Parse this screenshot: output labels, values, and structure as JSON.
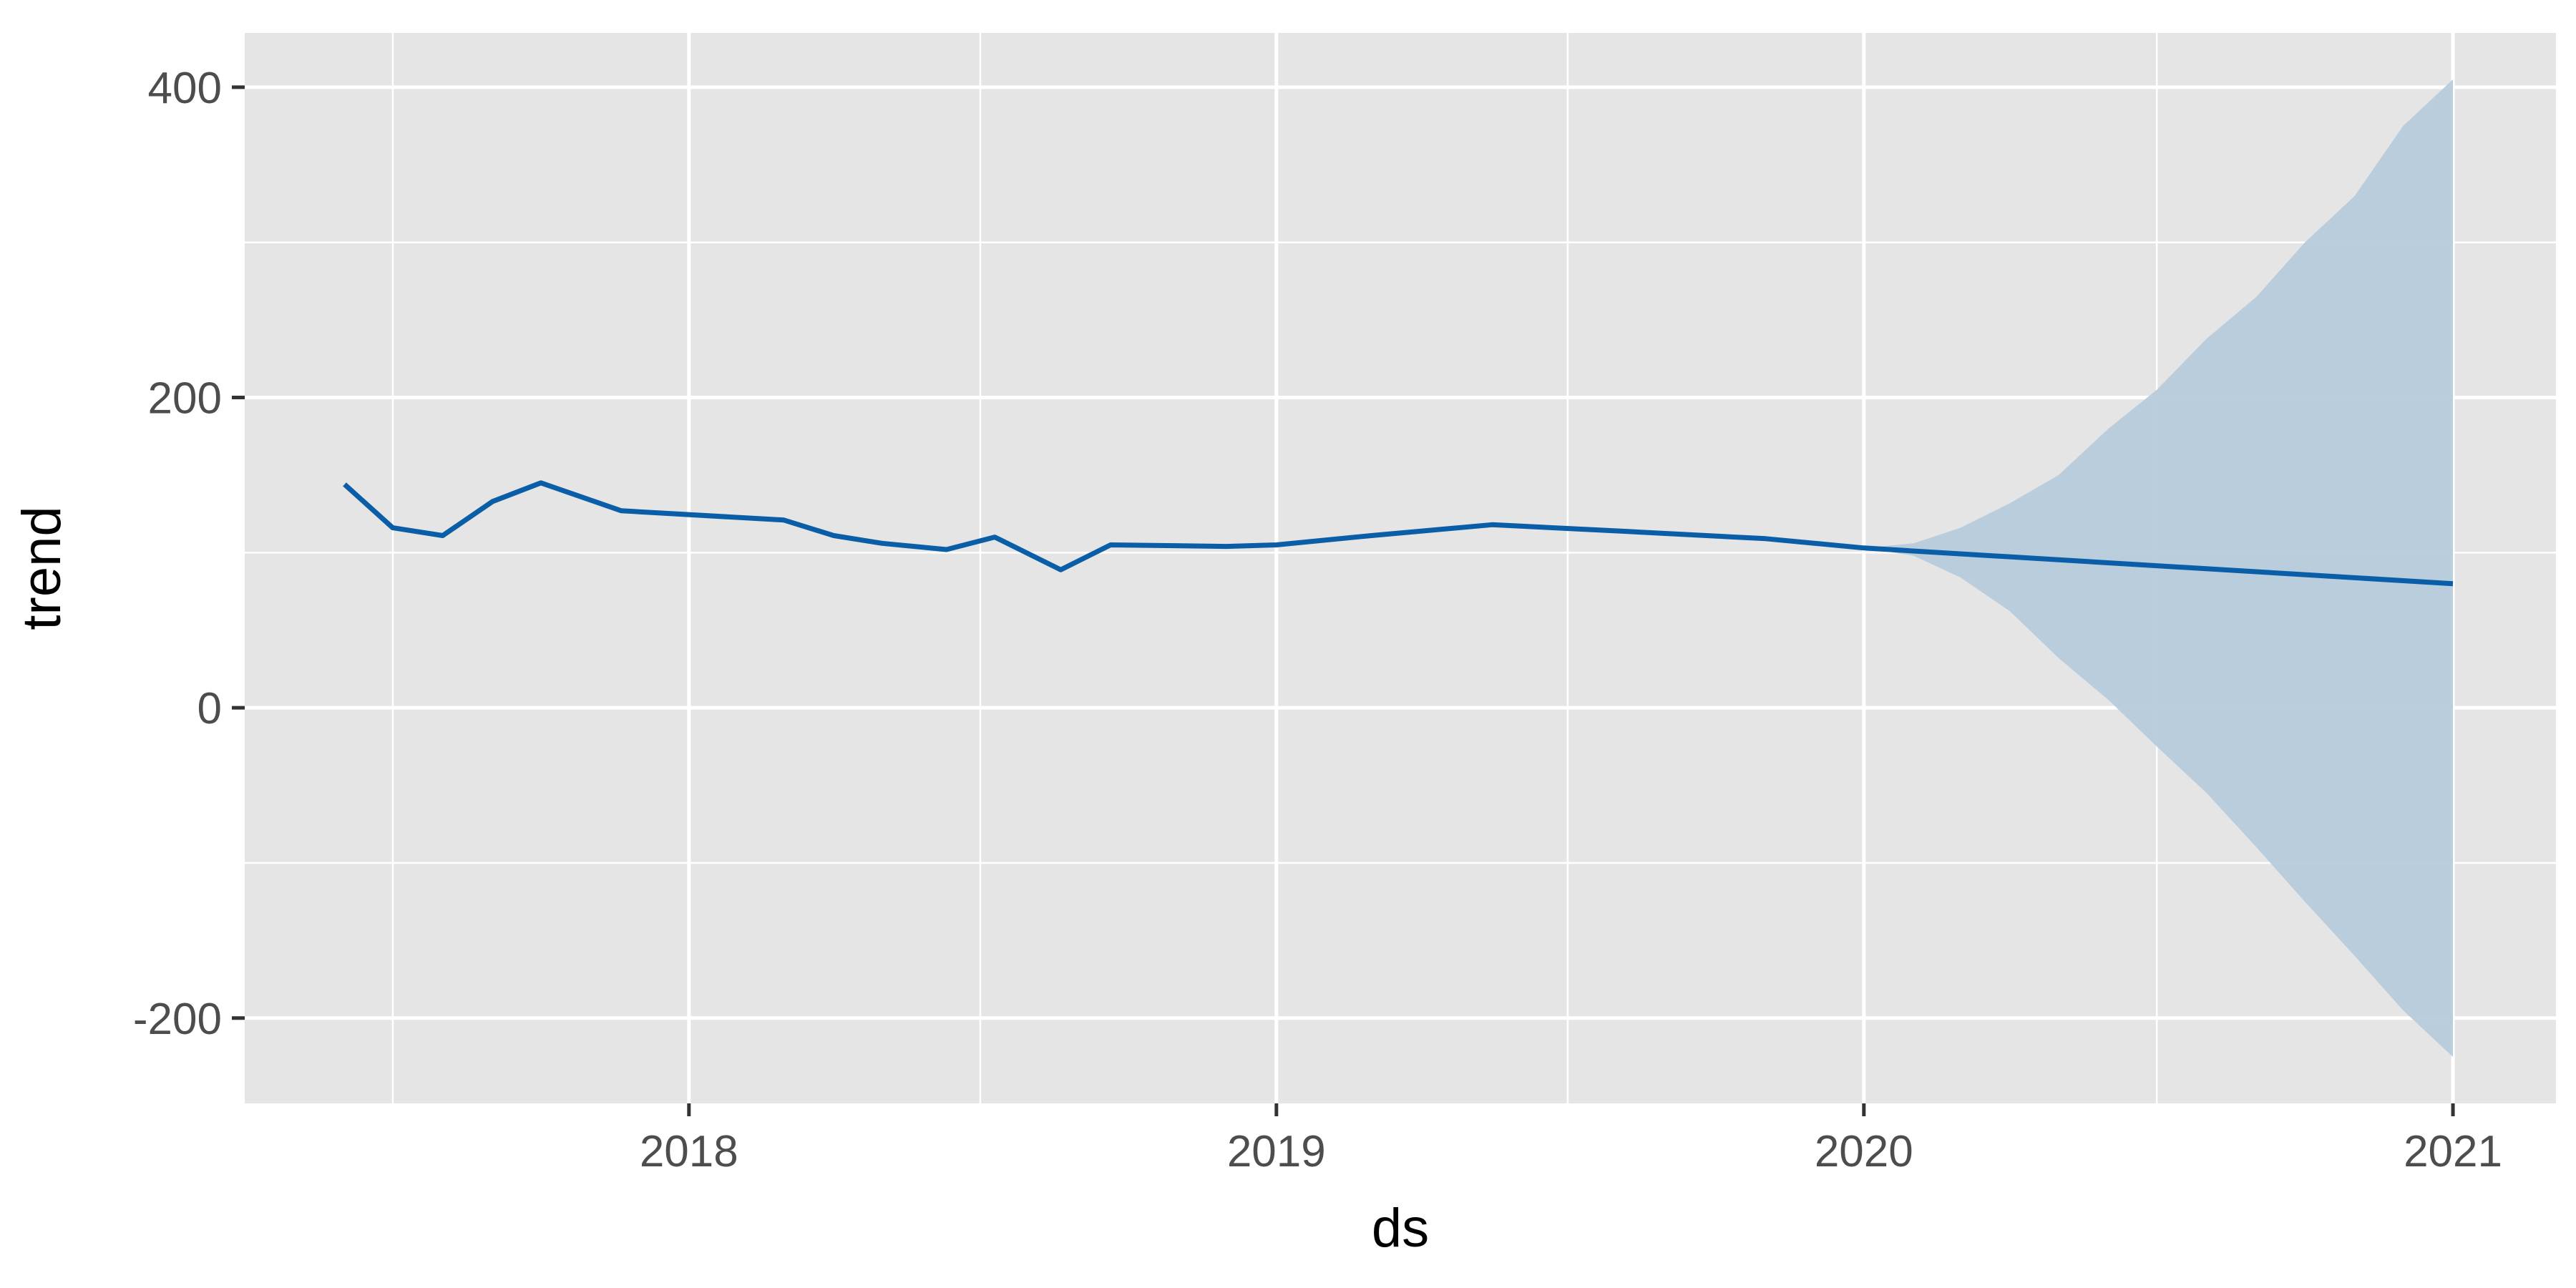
{
  "chart_data": {
    "type": "line",
    "title": "",
    "xlabel": "ds",
    "ylabel": "trend",
    "x_axis_type": "date",
    "xlim": [
      "2017-03-31",
      "2021-03-06"
    ],
    "ylim": [
      -255,
      435
    ],
    "x_ticks": [
      "2018-01-01",
      "2019-01-01",
      "2020-01-01",
      "2021-01-01"
    ],
    "x_tick_labels": [
      "2018",
      "2019",
      "2020",
      "2021"
    ],
    "y_ticks": [
      400,
      200,
      0,
      -200
    ],
    "y_tick_labels": [
      "400",
      "200",
      "0",
      "-200"
    ],
    "grid": true,
    "legend": "none",
    "colors": {
      "panel": "#e5e5e5",
      "grid": "#ffffff",
      "line": "#0a5ea8",
      "band": "#b7cbdb"
    },
    "series": [
      {
        "x": [
          "2017-06-01",
          "2017-07-01",
          "2017-08-01",
          "2017-09-01",
          "2017-10-01",
          "2017-11-20",
          "2018-03-01",
          "2018-04-01",
          "2018-05-01",
          "2018-06-10",
          "2018-07-10",
          "2018-08-20",
          "2018-09-20",
          "2018-12-01",
          "2019-01-01",
          "2019-03-01",
          "2019-05-15",
          "2019-08-01",
          "2019-11-01",
          "2020-01-01",
          "2021-01-01"
        ],
        "y": [
          144,
          116,
          111,
          133,
          145,
          127,
          121,
          111,
          106,
          102,
          110,
          89,
          105,
          104,
          105,
          111,
          118,
          114,
          109,
          103,
          80
        ]
      }
    ],
    "uncertainty_band": {
      "x": [
        "2020-01-01",
        "2020-02-01",
        "2020-03-01",
        "2020-04-01",
        "2020-05-01",
        "2020-06-01",
        "2020-07-01",
        "2020-08-01",
        "2020-09-01",
        "2020-10-01",
        "2020-11-01",
        "2020-12-01",
        "2021-01-01"
      ],
      "upper": [
        103,
        106,
        116,
        132,
        150,
        180,
        205,
        238,
        265,
        300,
        330,
        375,
        405
      ],
      "lower": [
        103,
        98,
        84,
        62,
        32,
        5,
        -25,
        -55,
        -90,
        -125,
        -160,
        -195,
        -225
      ]
    }
  }
}
